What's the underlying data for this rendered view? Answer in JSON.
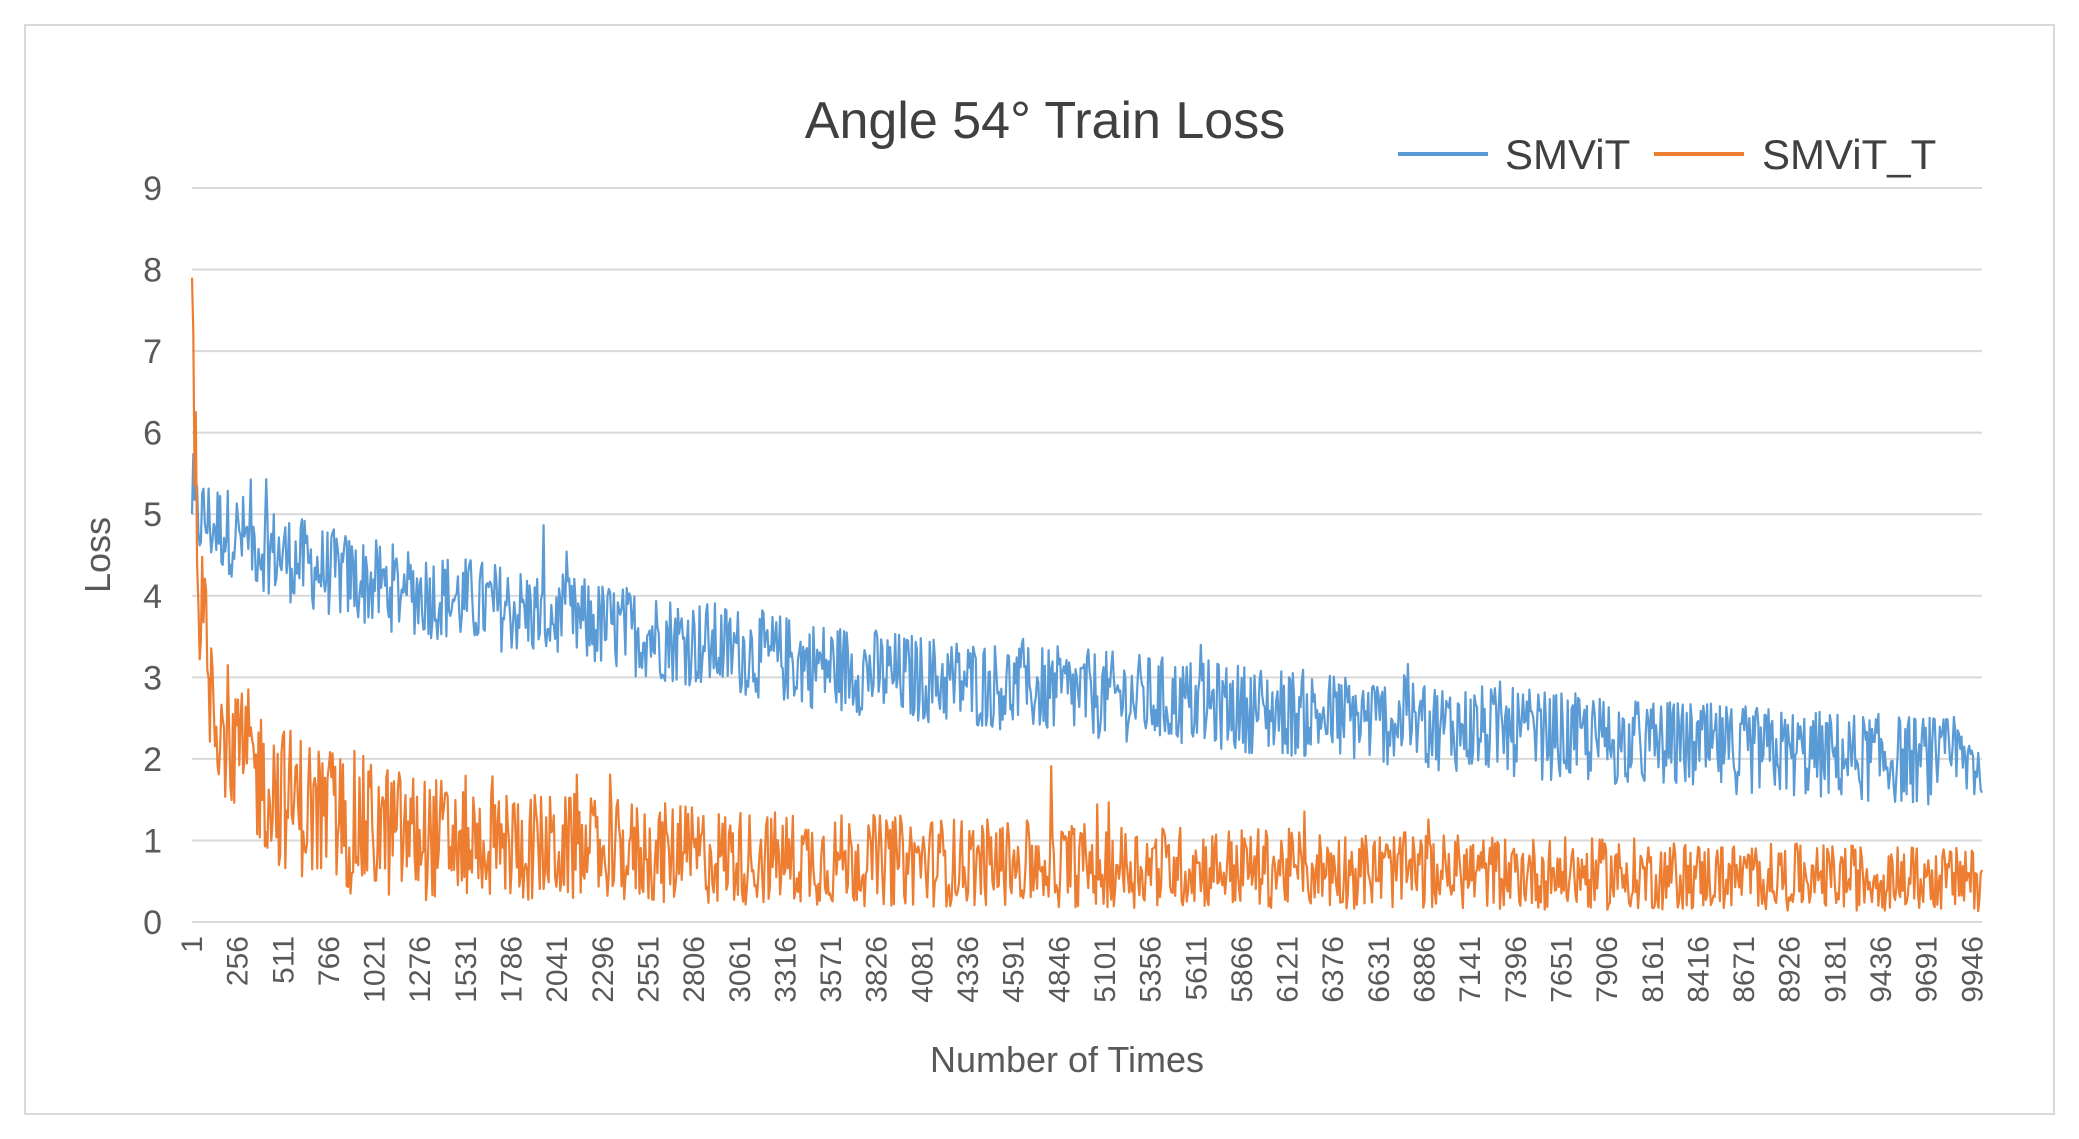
{
  "chart_data": {
    "type": "line",
    "title": "Angle 54°   Train Loss",
    "xlabel": "Number of Times",
    "ylabel": "Loss",
    "ylim": [
      0,
      9
    ],
    "yticks": [
      "0",
      "1",
      "2",
      "3",
      "4",
      "5",
      "6",
      "7",
      "8",
      "9"
    ],
    "xlim": [
      1,
      10000
    ],
    "xticks": [
      "1",
      "256",
      "511",
      "766",
      "1021",
      "1276",
      "1531",
      "1786",
      "2041",
      "2296",
      "2551",
      "2806",
      "3061",
      "3316",
      "3571",
      "3826",
      "4081",
      "4336",
      "4591",
      "4846",
      "5101",
      "5356",
      "5611",
      "5866",
      "6121",
      "6376",
      "6631",
      "6886",
      "7141",
      "7396",
      "7651",
      "7906",
      "8161",
      "8416",
      "8671",
      "8926",
      "9181",
      "9436",
      "9691",
      "9946"
    ],
    "grid": true,
    "legend_position": "top-right",
    "series": [
      {
        "name": "SMViT",
        "color": "#5b9bd5",
        "x": [
          1,
          100,
          250,
          500,
          750,
          1000,
          1250,
          1500,
          1750,
          2000,
          2250,
          2500,
          2750,
          3000,
          3250,
          3500,
          3750,
          4000,
          4250,
          4500,
          4750,
          5000,
          5250,
          5500,
          5750,
          6000,
          6250,
          6500,
          6750,
          7000,
          7250,
          7500,
          7750,
          8000,
          8250,
          8500,
          8750,
          9000,
          9250,
          9500,
          9750,
          10000
        ],
        "values": [
          5.0,
          4.9,
          4.75,
          4.5,
          4.3,
          4.15,
          4.05,
          3.95,
          3.85,
          3.75,
          3.65,
          3.55,
          3.45,
          3.35,
          3.25,
          3.15,
          3.08,
          3.0,
          2.95,
          2.9,
          2.85,
          2.8,
          2.75,
          2.7,
          2.65,
          2.6,
          2.55,
          2.5,
          2.45,
          2.4,
          2.35,
          2.3,
          2.25,
          2.2,
          2.17,
          2.13,
          2.1,
          2.06,
          2.03,
          2.0,
          1.98,
          1.95
        ]
      },
      {
        "name": "SMViT_T",
        "color": "#ed7d31",
        "x": [
          1,
          30,
          60,
          100,
          150,
          200,
          300,
          400,
          500,
          750,
          1000,
          1250,
          1500,
          1750,
          2000,
          2500,
          3000,
          3500,
          4000,
          4500,
          5000,
          5500,
          6000,
          6500,
          7000,
          7500,
          8000,
          8500,
          9000,
          9500,
          10000
        ],
        "values": [
          7.9,
          4.5,
          3.6,
          3.0,
          2.6,
          2.3,
          2.0,
          1.75,
          1.55,
          1.3,
          1.15,
          1.05,
          1.0,
          0.95,
          0.9,
          0.85,
          0.8,
          0.77,
          0.75,
          0.72,
          0.7,
          0.68,
          0.66,
          0.64,
          0.62,
          0.6,
          0.58,
          0.56,
          0.55,
          0.54,
          0.52
        ]
      }
    ]
  }
}
